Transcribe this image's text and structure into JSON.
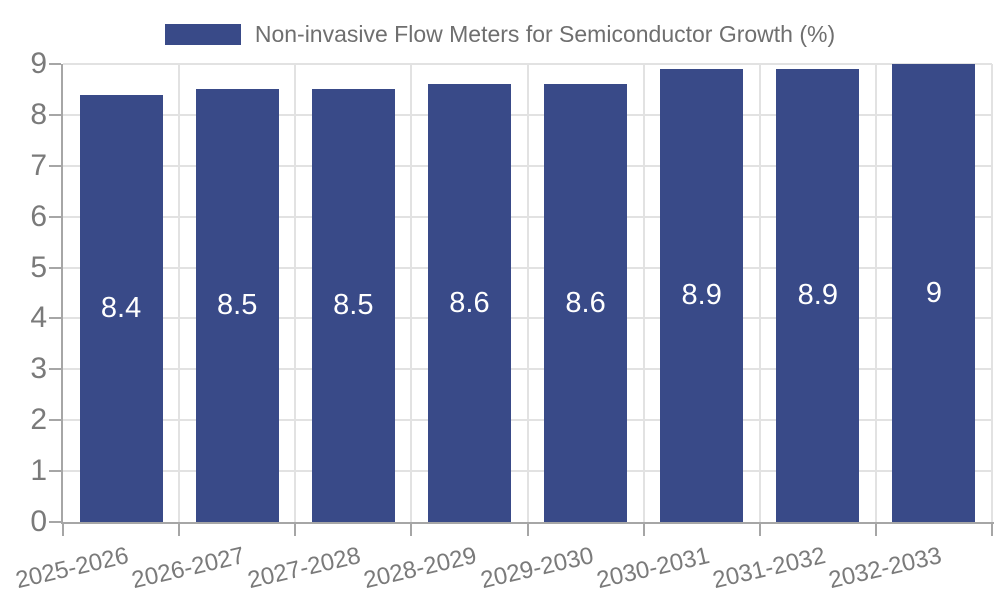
{
  "chart_data": {
    "type": "bar",
    "title": "",
    "legend_label": "Non-invasive Flow Meters for Semiconductor Growth (%)",
    "legend_position": "top-center",
    "categories": [
      "2025-2026",
      "2026-2027",
      "2027-2028",
      "2028-2029",
      "2029-2030",
      "2030-2031",
      "2031-2032",
      "2032-2033"
    ],
    "values": [
      8.4,
      8.5,
      8.5,
      8.6,
      8.6,
      8.9,
      8.9,
      9
    ],
    "bar_labels": [
      "8.4",
      "8.5",
      "8.5",
      "8.6",
      "8.6",
      "8.9",
      "8.9",
      "9"
    ],
    "xlabel": "",
    "ylabel": "",
    "ylim": [
      0,
      9
    ],
    "ytick_step": 1,
    "yticks": [
      0,
      1,
      2,
      3,
      4,
      5,
      6,
      7,
      8,
      9
    ],
    "grid": true,
    "colors": {
      "bar": "#394A88",
      "bar_label": "#FFFFFF",
      "axis": "#A6A6A6",
      "grid": "#E2E2E2",
      "tick_label": "#7A7A7A",
      "legend_text": "#6F6F6F",
      "background": "#FFFFFF"
    }
  }
}
